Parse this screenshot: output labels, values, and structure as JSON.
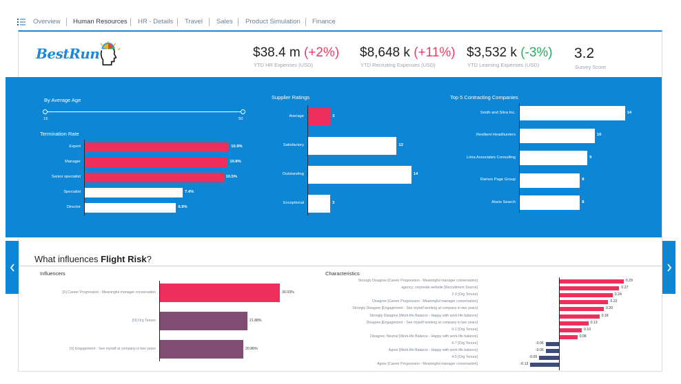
{
  "tabs": [
    "Overview",
    "Human Resources",
    "HR - Details",
    "Travel",
    "Sales",
    "Product Simulation",
    "Finance"
  ],
  "active_tab": "Human Resources",
  "logo": {
    "text": "BestRun"
  },
  "kpis": [
    {
      "value": "$38.4 m",
      "delta": "(+2%)",
      "label": "YTD HR Expenses (USD)"
    },
    {
      "value": "$8,648 k",
      "delta": "(+11%)",
      "label": "YTD Recruiting Expenses (USD)"
    },
    {
      "value": "$3,532 k",
      "delta": "(-3%)",
      "label": "YTD Learning Expenses (USD)"
    },
    {
      "value": "3.2",
      "delta": "",
      "label": "Survey Score"
    }
  ],
  "age_filter": {
    "title": "By Average Age",
    "min": "16",
    "max": "50"
  },
  "termination": {
    "title": "Termination Rate",
    "items": [
      {
        "label": "Expert",
        "value": 10.9,
        "text": "10.9%",
        "highlight": true
      },
      {
        "label": "Manager",
        "value": 10.8,
        "text": "10.8%",
        "highlight": true
      },
      {
        "label": "Senior specialist",
        "value": 10.5,
        "text": "10.5%",
        "highlight": true
      },
      {
        "label": "Specialist",
        "value": 7.4,
        "text": "7.4%",
        "highlight": false
      },
      {
        "label": "Director",
        "value": 6.9,
        "text": "6.9%",
        "highlight": false
      }
    ]
  },
  "supplier": {
    "title": "Supplier Ratings",
    "items": [
      {
        "label": "Average",
        "value": 3,
        "highlight": true
      },
      {
        "label": "Satisfactory",
        "value": 12,
        "highlight": false
      },
      {
        "label": "Outstanding",
        "value": 14,
        "highlight": false
      },
      {
        "label": "Exceptional",
        "value": 3,
        "highlight": false
      }
    ]
  },
  "contracting": {
    "title": "Top 5 Contracting Companies",
    "items": [
      {
        "label": "Smith and Silva Inc.",
        "value": 14
      },
      {
        "label": "Resilient Headhunters",
        "value": 10
      },
      {
        "label": "Lima Associates Consulting",
        "value": 9
      },
      {
        "label": "Ramos Page Group",
        "value": 8
      },
      {
        "label": "Ataris Search",
        "value": 8
      }
    ]
  },
  "flight_risk": {
    "title_prefix": "What influences ",
    "title_bold": "Flight Risk",
    "title_suffix": "?"
  },
  "influencers": {
    "title": "Influencers",
    "items": [
      {
        "label": "[X] Career Progression - Meaningful manager conversation",
        "value": 30.03,
        "text": "30.03%",
        "color": "#ee2f5c"
      },
      {
        "label": "[O] Org Tenure",
        "value": 21.88,
        "text": "21.88%",
        "color": "#7f4d74"
      },
      {
        "label": "[X] Engagement - See myself at company in two years",
        "value": 20.86,
        "text": "20.86%",
        "color": "#7f4d74"
      }
    ]
  },
  "characteristics": {
    "title": "Characteristics",
    "items": [
      {
        "label": "Strongly Disagree [Career Progression - Meaningful manager conversation]",
        "value": 0.29,
        "text": "0.29"
      },
      {
        "label": "agency; corporate website [Recruitment Source]",
        "value": 0.27,
        "text": "0.27"
      },
      {
        "label": "2-3 [Org Tenure]",
        "value": 0.24,
        "text": "0.24"
      },
      {
        "label": "Disagree [Career Progression - Meaningful manager conversation]",
        "value": 0.22,
        "text": "0.22"
      },
      {
        "label": "Strongly Disagree [Engagement - See myself working at company in two years]",
        "value": 0.2,
        "text": "0.20"
      },
      {
        "label": "Strongly Disagree [Work-life Balance - Happy with work-life balance]",
        "value": 0.18,
        "text": "0.18"
      },
      {
        "label": "Disagree [Engagement - See myself working at company in two years]",
        "value": 0.13,
        "text": "0.13"
      },
      {
        "label": "0-1 [Org Tenure]",
        "value": 0.1,
        "text": "0.10"
      },
      {
        "label": "Disagree; Neutral [Work-life Balance - Happy with work-life balance]",
        "value": 0.08,
        "text": "0.08"
      },
      {
        "label": "6-7 [Org Tenure]",
        "value": -0.06,
        "text": "-0.06"
      },
      {
        "label": "Agree [Work-life Balance - Happy with work-life balance]",
        "value": -0.06,
        "text": "-0.06"
      },
      {
        "label": "4-5 [Org Tenure]",
        "value": -0.09,
        "text": "-0.09"
      },
      {
        "label": "Agree [Career Progression - Meaningful manager conversation]",
        "value": -0.13,
        "text": "-0.13"
      }
    ]
  },
  "colors": {
    "highlight": "#ee2f5c",
    "bar_white": "#ffffff",
    "panel": "#0e86d6",
    "negative": "#3d4b7c"
  },
  "icons": {
    "menu": "list-menu-icon",
    "prev": "chevron-left-icon",
    "next": "chevron-right-icon",
    "logo": "head-gear-icon"
  }
}
